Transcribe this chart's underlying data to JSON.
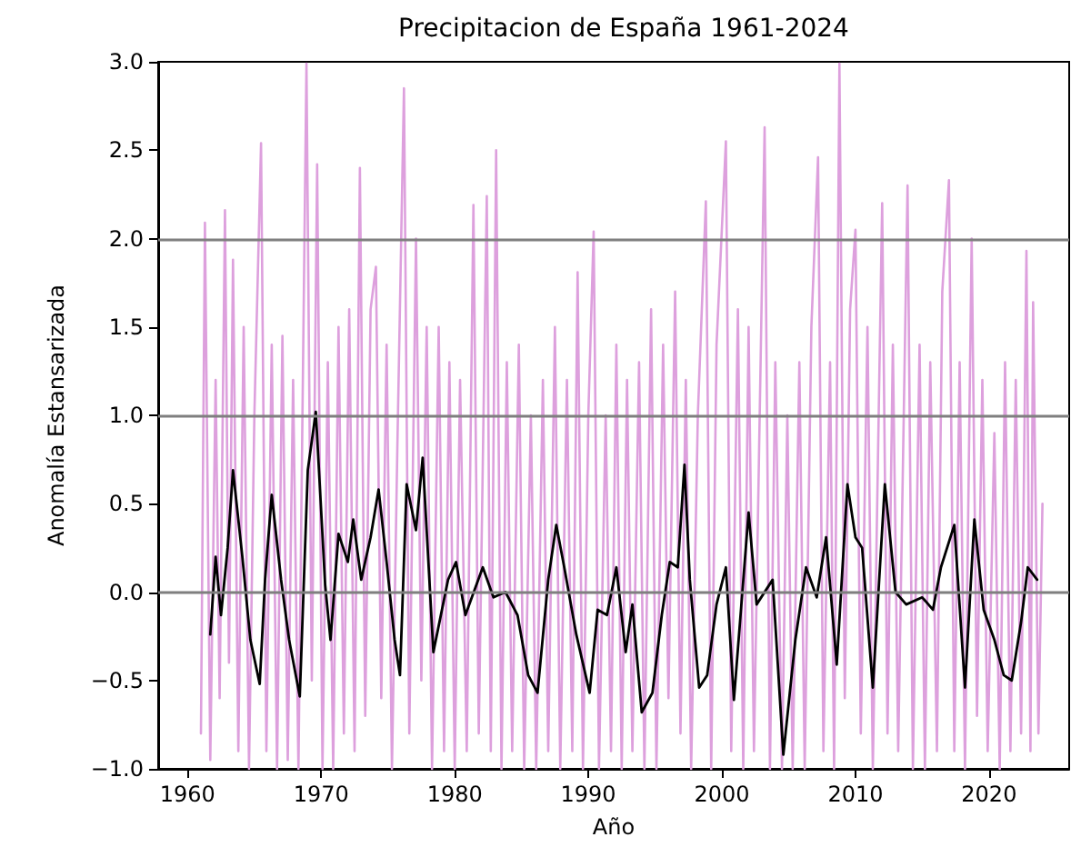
{
  "chart_data": {
    "type": "line",
    "title": "Precipitacion de España 1961-2024",
    "xlabel": "Año",
    "ylabel": "Anomalía Estansarizada",
    "xlim": [
      1957.8,
      2026
    ],
    "xticks": [
      1960,
      1970,
      1980,
      1990,
      2000,
      2010,
      2020
    ],
    "ylim": [
      -1.0,
      3.0
    ],
    "yticks": [
      {
        "value": -1,
        "label": "−1.0"
      },
      {
        "value": -0.5,
        "label": "−0.5"
      },
      {
        "value": 0,
        "label": "0.0"
      },
      {
        "value": 0.5,
        "label": "0.5"
      },
      {
        "value": 1,
        "label": "1.0"
      },
      {
        "value": 1.5,
        "label": "1.5"
      },
      {
        "value": 2,
        "label": "2.0"
      },
      {
        "value": 2.5,
        "label": "2.5"
      },
      {
        "value": 3,
        "label": "3.0"
      }
    ],
    "grid": false,
    "marker": "none",
    "line_style": "solid",
    "ref_lines": [
      {
        "axis": "y",
        "value": 0,
        "color": "#7f7f7f"
      },
      {
        "axis": "y",
        "value": 1,
        "color": "#7f7f7f"
      },
      {
        "axis": "y",
        "value": 2,
        "color": "#7f7f7f"
      }
    ],
    "series": [
      {
        "color": "#dda0dd",
        "x": [
          1961.0,
          1961.3,
          1961.7,
          1962.1,
          1962.4,
          1962.8,
          1963.1,
          1963.4,
          1963.8,
          1964.2,
          1964.6,
          1965.0,
          1965.5,
          1965.9,
          1966.3,
          1966.7,
          1967.1,
          1967.5,
          1967.9,
          1968.3,
          1968.6,
          1968.9,
          1969.3,
          1969.7,
          1970.1,
          1970.5,
          1970.9,
          1971.3,
          1971.7,
          1972.1,
          1972.5,
          1972.9,
          1973.3,
          1973.7,
          1974.1,
          1974.5,
          1974.9,
          1975.3,
          1975.7,
          1976.2,
          1976.6,
          1977.1,
          1977.5,
          1977.9,
          1978.3,
          1978.8,
          1979.2,
          1979.6,
          1980.0,
          1980.4,
          1980.9,
          1981.4,
          1981.8,
          1982.4,
          1982.7,
          1983.1,
          1983.5,
          1983.9,
          1984.3,
          1984.8,
          1985.2,
          1985.7,
          1986.1,
          1986.6,
          1987.0,
          1987.5,
          1987.9,
          1988.4,
          1988.8,
          1989.2,
          1989.6,
          1990.0,
          1990.4,
          1990.8,
          1991.3,
          1991.7,
          1992.1,
          1992.5,
          1992.9,
          1993.3,
          1993.8,
          1994.2,
          1994.7,
          1995.1,
          1995.6,
          1996.0,
          1996.5,
          1996.9,
          1997.3,
          1997.7,
          1998.2,
          1998.8,
          1999.2,
          1999.6,
          2000.3,
          2000.7,
          2001.2,
          2001.6,
          2002.0,
          2002.4,
          2003.2,
          2003.6,
          2004.0,
          2004.5,
          2004.9,
          2005.3,
          2005.8,
          2006.2,
          2006.7,
          2007.2,
          2007.6,
          2008.1,
          2008.4,
          2008.8,
          2009.2,
          2009.6,
          2010.0,
          2010.4,
          2010.9,
          2011.3,
          2012.0,
          2012.4,
          2012.8,
          2013.2,
          2013.9,
          2014.3,
          2014.8,
          2015.2,
          2015.6,
          2016.1,
          2016.5,
          2017.0,
          2017.4,
          2017.8,
          2018.2,
          2018.7,
          2019.1,
          2019.5,
          2019.9,
          2020.4,
          2020.8,
          2021.2,
          2021.6,
          2022.0,
          2022.4,
          2022.8,
          2023.1,
          2023.3,
          2023.7,
          2024.0
        ],
        "values": [
          -0.8,
          2.09,
          -0.95,
          1.2,
          -0.6,
          2.16,
          -0.4,
          1.88,
          -0.9,
          1.5,
          -1.0,
          1.0,
          2.54,
          -0.9,
          1.4,
          -1.0,
          1.45,
          -0.95,
          1.2,
          -1.0,
          1.0,
          2.99,
          -0.5,
          2.42,
          -1.0,
          1.3,
          -1.0,
          1.5,
          -0.8,
          1.6,
          -0.9,
          2.4,
          -0.7,
          1.6,
          1.84,
          -0.6,
          1.4,
          -1.0,
          0.8,
          2.85,
          -0.8,
          2.0,
          -0.5,
          1.5,
          -1.0,
          1.5,
          -0.9,
          1.3,
          -1.0,
          1.2,
          -0.9,
          2.19,
          -0.8,
          2.24,
          -0.9,
          2.5,
          -1.0,
          1.3,
          -0.9,
          1.4,
          -1.0,
          1.0,
          -1.0,
          1.2,
          -0.9,
          1.5,
          -1.0,
          1.2,
          -0.9,
          1.81,
          -1.0,
          1.0,
          2.04,
          -1.0,
          1.0,
          -0.9,
          1.4,
          -1.0,
          1.2,
          -0.9,
          1.3,
          -1.0,
          1.6,
          -1.0,
          1.4,
          -0.6,
          1.7,
          -0.8,
          1.2,
          -1.0,
          1.0,
          2.21,
          -1.0,
          1.4,
          2.55,
          -0.9,
          1.6,
          -1.0,
          1.5,
          -0.9,
          2.63,
          -1.0,
          1.3,
          -1.0,
          1.0,
          -1.0,
          1.3,
          -1.0,
          1.5,
          2.46,
          -0.9,
          1.3,
          -1.0,
          2.99,
          -0.6,
          1.6,
          2.05,
          -0.8,
          1.5,
          -1.0,
          2.2,
          -0.8,
          1.4,
          -0.9,
          2.3,
          -1.0,
          1.4,
          -1.0,
          1.3,
          -0.9,
          1.7,
          2.33,
          -0.9,
          1.3,
          -1.0,
          2.0,
          -0.7,
          1.2,
          -0.9,
          0.9,
          -1.0,
          1.3,
          -0.9,
          1.2,
          -0.8,
          1.93,
          -0.9,
          1.64,
          -0.8,
          0.5
        ]
      },
      {
        "color": "#000000",
        "x": [
          1961.7,
          1962.1,
          1962.5,
          1963.0,
          1963.4,
          1964.1,
          1964.7,
          1965.4,
          1965.8,
          1966.3,
          1967.0,
          1967.6,
          1968.4,
          1969.0,
          1969.6,
          1970.3,
          1970.7,
          1971.3,
          1972.0,
          1972.4,
          1973.0,
          1973.7,
          1974.3,
          1974.9,
          1975.5,
          1975.9,
          1976.4,
          1977.1,
          1977.6,
          1978.4,
          1979.5,
          1980.1,
          1980.8,
          1982.1,
          1982.9,
          1983.8,
          1984.7,
          1985.5,
          1986.2,
          1987.0,
          1987.6,
          1988.2,
          1989.1,
          1990.1,
          1990.7,
          1991.4,
          1992.1,
          1992.8,
          1993.3,
          1994.0,
          1994.8,
          1995.5,
          1996.1,
          1996.7,
          1997.2,
          1997.6,
          1998.3,
          1998.9,
          1999.6,
          2000.3,
          2000.9,
          2002.0,
          2002.6,
          2003.8,
          2004.6,
          2005.5,
          2006.3,
          2007.1,
          2007.8,
          2008.6,
          2009.4,
          2010.0,
          2010.5,
          2011.3,
          2012.2,
          2013.0,
          2013.8,
          2015.0,
          2015.8,
          2016.4,
          2017.4,
          2018.2,
          2018.9,
          2019.6,
          2020.4,
          2021.1,
          2021.7,
          2022.4,
          2022.9,
          2023.6
        ],
        "values": [
          -0.24,
          0.2,
          -0.13,
          0.25,
          0.69,
          0.2,
          -0.27,
          -0.52,
          0.07,
          0.55,
          0.07,
          -0.27,
          -0.59,
          0.69,
          1.02,
          0.04,
          -0.27,
          0.33,
          0.17,
          0.41,
          0.07,
          0.31,
          0.58,
          0.17,
          -0.27,
          -0.47,
          0.61,
          0.35,
          0.76,
          -0.34,
          0.07,
          0.17,
          -0.13,
          0.14,
          -0.03,
          0.0,
          -0.13,
          -0.47,
          -0.57,
          0.07,
          0.38,
          0.14,
          -0.24,
          -0.57,
          -0.1,
          -0.13,
          0.14,
          -0.34,
          -0.07,
          -0.68,
          -0.57,
          -0.13,
          0.17,
          0.14,
          0.72,
          0.07,
          -0.54,
          -0.47,
          -0.07,
          0.14,
          -0.61,
          0.45,
          -0.07,
          0.07,
          -0.92,
          -0.27,
          0.14,
          -0.03,
          0.31,
          -0.41,
          0.61,
          0.31,
          0.25,
          -0.54,
          0.61,
          0.0,
          -0.07,
          -0.03,
          -0.1,
          0.14,
          0.38,
          -0.54,
          0.41,
          -0.1,
          -0.27,
          -0.47,
          -0.5,
          -0.17,
          0.14,
          0.07
        ]
      }
    ]
  }
}
